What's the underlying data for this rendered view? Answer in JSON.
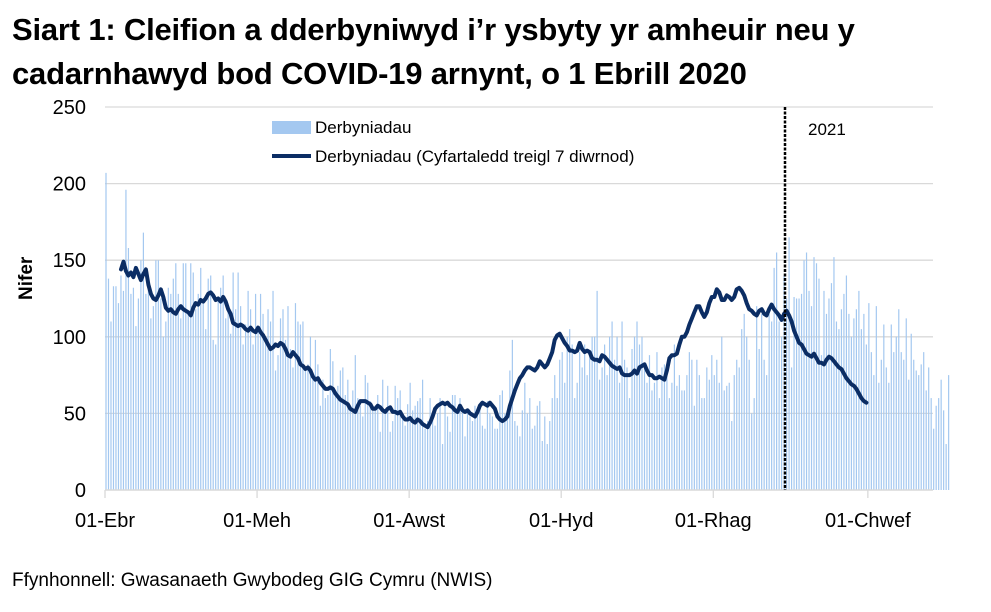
{
  "title": "Siart 1: Cleifion a dderbyniwyd i’r ysbyty yr amheuir neu y cadarnhawyd bod COVID-19 arnynt, o 1 Ebrill 2020",
  "source": "Ffynhonnell: Gwasanaeth Gwybodeg GIG Cymru (NWIS)",
  "chart_data": {
    "type": "bar+line",
    "title": "Siart 1: Cleifion a dderbyniwyd i’r ysbyty yr amheuir neu y cadarnhawyd bod COVID-19 arnynt, o 1 Ebrill 2020",
    "xlabel": "",
    "ylabel": "Nifer",
    "ylim": [
      0,
      250
    ],
    "yticks": [
      0,
      50,
      100,
      150,
      200,
      250
    ],
    "grid": true,
    "legend_position": "top-center-inside",
    "x_start": "2020-04-01",
    "x_tick_labels": [
      {
        "label": "01-Ebr",
        "day": 0
      },
      {
        "label": "01-Meh",
        "day": 61
      },
      {
        "label": "01-Awst",
        "day": 122
      },
      {
        "label": "01-Hyd",
        "day": 183
      },
      {
        "label": "01-Rhag",
        "day": 244
      },
      {
        "label": "01-Chwef",
        "day": 306
      }
    ],
    "annotations": [
      {
        "type": "vertical-dashed-line",
        "day": 275,
        "label": "2021"
      }
    ],
    "series": [
      {
        "name": "Derbyniadau",
        "type": "bar",
        "color": "#a4c8f0",
        "values": [
          207,
          138,
          110,
          133,
          133,
          122,
          140,
          130,
          196,
          158,
          128,
          132,
          107,
          125,
          150,
          168,
          128,
          132,
          112,
          120,
          150,
          150,
          125,
          100,
          110,
          132,
          128,
          138,
          148,
          128,
          112,
          148,
          148,
          115,
          148,
          142,
          118,
          128,
          145,
          125,
          105,
          138,
          140,
          98,
          95,
          125,
          132,
          140,
          112,
          118,
          102,
          142,
          118,
          142,
          120,
          95,
          108,
          130,
          118,
          95,
          128,
          105,
          128,
          115,
          100,
          118,
          110,
          130,
          78,
          88,
          112,
          118,
          98,
          120,
          92,
          80,
          122,
          110,
          108,
          110,
          78,
          82,
          100,
          75,
          98,
          82,
          55,
          72,
          60,
          62,
          92,
          84,
          62,
          68,
          78,
          80,
          62,
          72,
          55,
          65,
          88,
          60,
          55,
          48,
          75,
          70,
          58,
          52,
          55,
          62,
          38,
          72,
          50,
          68,
          38,
          45,
          68,
          60,
          65,
          50,
          42,
          56,
          70,
          52,
          55,
          58,
          60,
          72,
          40,
          45,
          60,
          48,
          42,
          50,
          60,
          30,
          55,
          48,
          38,
          62,
          62,
          52,
          60,
          52,
          35,
          50,
          48,
          45,
          55,
          50,
          55,
          42,
          40,
          58,
          50,
          48,
          40,
          40,
          62,
          65,
          50,
          52,
          78,
          98,
          45,
          42,
          35,
          52,
          70,
          50,
          60,
          40,
          42,
          55,
          58,
          32,
          48,
          30,
          45,
          60,
          75,
          60,
          85,
          90,
          70,
          100,
          105,
          95,
          60,
          70,
          90,
          80,
          95,
          75,
          90,
          100,
          100,
          130,
          72,
          80,
          95,
          75,
          100,
          110,
          85,
          100,
          70,
          110,
          85,
          80,
          60,
          92,
          100,
          110,
          95,
          100,
          80,
          70,
          88,
          65,
          70,
          90,
          60,
          80,
          82,
          80,
          60,
          70,
          95,
          68,
          75,
          65,
          65,
          75,
          90,
          85,
          55,
          85,
          75,
          60,
          60,
          80,
          72,
          88,
          75,
          85,
          70,
          100,
          65,
          68,
          70,
          45,
          75,
          85,
          80,
          105,
          115,
          100,
          85,
          50,
          60,
          120,
          92,
          115,
          85,
          75,
          115,
          110,
          145,
          155,
          110,
          100,
          140,
          125,
          165,
          80,
          126,
          125,
          125,
          128,
          150,
          155,
          130,
          120,
          152,
          148,
          138,
          88,
          130,
          115,
          125,
          135,
          152,
          110,
          105,
          118,
          128,
          140,
          115,
          100,
          112,
          118,
          130,
          105,
          115,
          95,
          122,
          90,
          75,
          120,
          70,
          85,
          108,
          80,
          70,
          108,
          90,
          100,
          118,
          90,
          85,
          112,
          72,
          102,
          85,
          78,
          75,
          82,
          90,
          65,
          80,
          60,
          40,
          55,
          60,
          72,
          52,
          30,
          75
        ]
      },
      {
        "name": "Derbyniadau  (Cyfartaledd treigl 7 diwrnod)",
        "type": "line",
        "color": "#0b2d64",
        "start_day": 6,
        "values": [
          144,
          149,
          143,
          140,
          142,
          139,
          145,
          141,
          137,
          141,
          144,
          134,
          128,
          125,
          124,
          127,
          131,
          126,
          119,
          117,
          118,
          116,
          115,
          118,
          120,
          118,
          117,
          116,
          114,
          119,
          122,
          121,
          124,
          123,
          125,
          128,
          129,
          127,
          124,
          125,
          123,
          126,
          123,
          118,
          115,
          109,
          108,
          107,
          108,
          107,
          105,
          104,
          106,
          104,
          103,
          106,
          103,
          101,
          98,
          95,
          92,
          93,
          95,
          94,
          96,
          95,
          92,
          88,
          87,
          90,
          88,
          86,
          82,
          81,
          79,
          80,
          78,
          74,
          72,
          73,
          70,
          68,
          66,
          66,
          67,
          66,
          63,
          61,
          59,
          58,
          57,
          56,
          53,
          52,
          51,
          55,
          58,
          58,
          58,
          57,
          56,
          53,
          53,
          55,
          54,
          52,
          51,
          53,
          54,
          51,
          51,
          50,
          51,
          48,
          46,
          46,
          47,
          45,
          44,
          46,
          45,
          43,
          42,
          41,
          44,
          48,
          53,
          55,
          56,
          57,
          56,
          57,
          55,
          54,
          52,
          51,
          55,
          52,
          51,
          52,
          50,
          49,
          48,
          51,
          55,
          57,
          56,
          55,
          57,
          55,
          53,
          48,
          46,
          45,
          46,
          48,
          55,
          60,
          65,
          69,
          73,
          75,
          78,
          80,
          80,
          79,
          78,
          80,
          84,
          82,
          80,
          82,
          86,
          90,
          98,
          101,
          102,
          99,
          96,
          94,
          91,
          91,
          90,
          91,
          96,
          92,
          90,
          91,
          90,
          86,
          85,
          85,
          84,
          88,
          87,
          85,
          83,
          81,
          80,
          79,
          80,
          76,
          75,
          75,
          75,
          76,
          78,
          76,
          80,
          81,
          82,
          78,
          75,
          75,
          73,
          73,
          74,
          73,
          72,
          78,
          86,
          88,
          88,
          89,
          95,
          100,
          100,
          103,
          108,
          112,
          116,
          120,
          120,
          116,
          113,
          116,
          122,
          126,
          126,
          131,
          129,
          124,
          124,
          127,
          126,
          124,
          126,
          131,
          132,
          130,
          127,
          122,
          118,
          117,
          115,
          114,
          117,
          118,
          115,
          114,
          118,
          121,
          118,
          116,
          114,
          111,
          115,
          117,
          114,
          110,
          104,
          100,
          96,
          95,
          92,
          89,
          88,
          87,
          89,
          86,
          83,
          83,
          82,
          85,
          87,
          86,
          84,
          82,
          80,
          79,
          76,
          73,
          71,
          69,
          68,
          66,
          63,
          60,
          58,
          57
        ]
      }
    ]
  },
  "legend": {
    "bar_label": "Derbyniadau",
    "line_label": "Derbyniadau  (Cyfartaledd treigl 7 diwrnod)"
  },
  "annotation_label": "2021",
  "y_axis_label": "Nifer",
  "colors": {
    "bar": "#a4c8f0",
    "line": "#0b2d64",
    "grid": "#d9d9d9",
    "axis": "#d9d9d9",
    "divider": "#000000"
  }
}
